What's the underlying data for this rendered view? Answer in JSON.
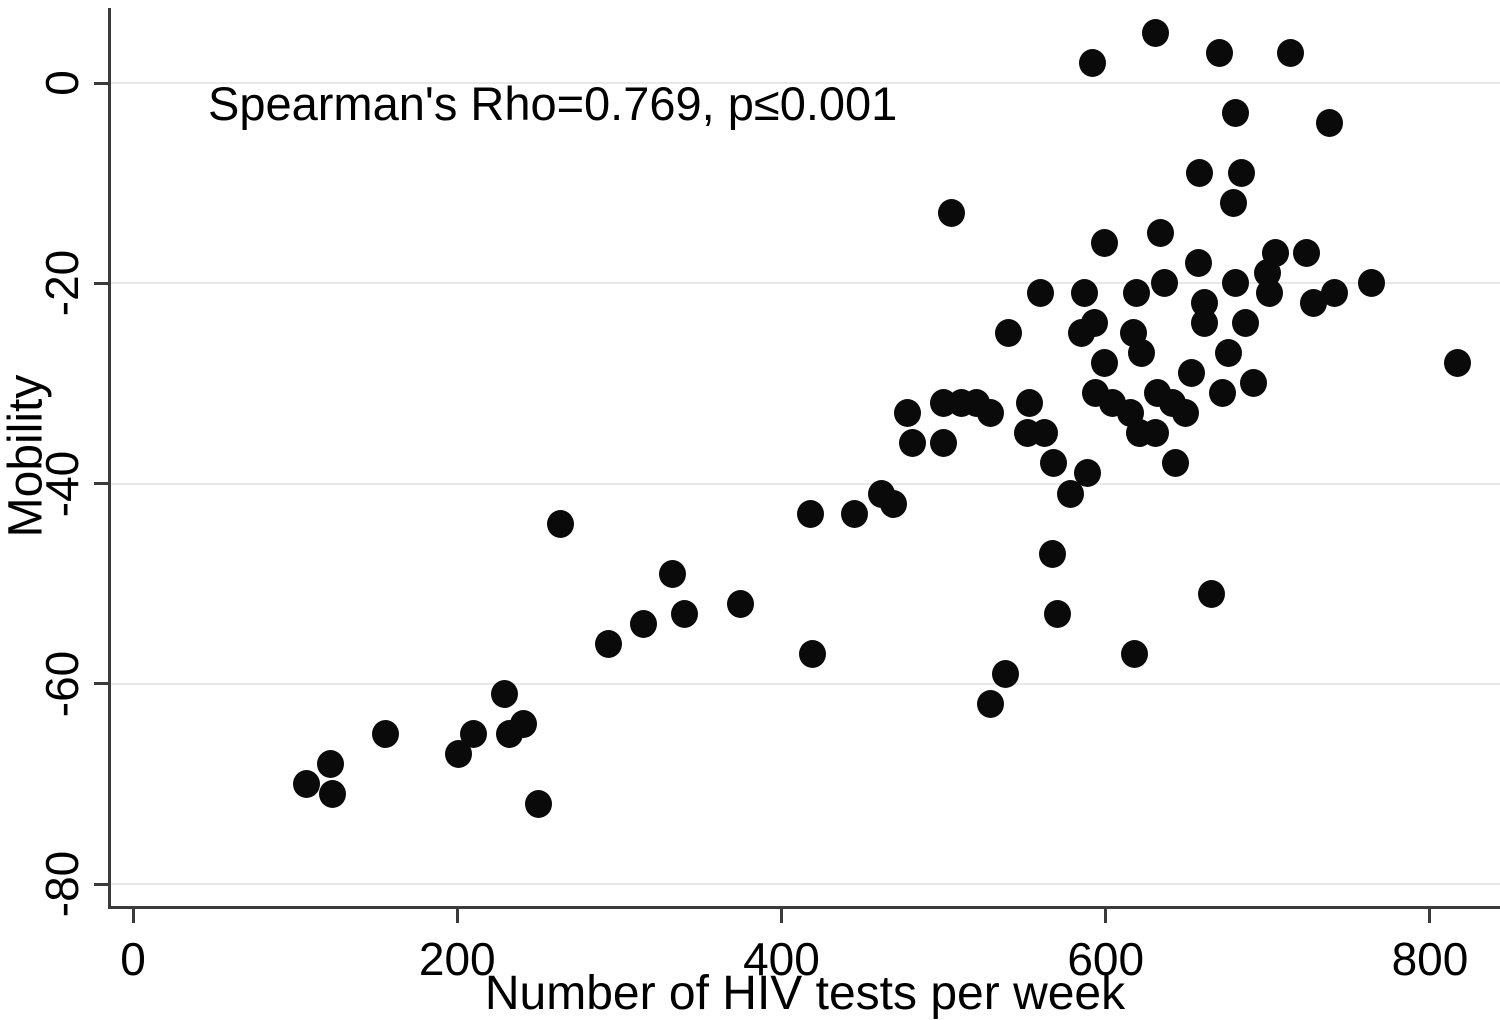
{
  "figure": {
    "annotation": "Spearman's Rho=0.769, p≤0.001",
    "x_axis_title": "Number of HIV tests per week",
    "y_axis_title": "Mobility",
    "colors": {
      "marker": "#0a0a0a",
      "axis": "#3a3a3a",
      "grid": "#e8e8e8",
      "background": "#ffffff",
      "text": "#000000"
    }
  },
  "chart_data": {
    "type": "scatter",
    "title": "",
    "xlabel": "Number of HIV tests per week",
    "ylabel": "Mobility",
    "annotation": "Spearman's Rho=0.769, p≤0.001",
    "x_ticks": [
      0,
      200,
      400,
      600,
      800
    ],
    "y_ticks": [
      0,
      -20,
      -40,
      -60,
      -80
    ],
    "xlim": [
      0,
      845
    ],
    "ylim": [
      -82,
      7.5
    ],
    "grid": "horizontal-only",
    "legend_position": "none",
    "points": [
      [
        107,
        -70
      ],
      [
        122,
        -68
      ],
      [
        123,
        -71
      ],
      [
        156,
        -65
      ],
      [
        201,
        -67
      ],
      [
        210,
        -65
      ],
      [
        229,
        -61
      ],
      [
        232,
        -65
      ],
      [
        241,
        -64
      ],
      [
        250,
        -72
      ],
      [
        264,
        -44
      ],
      [
        293,
        -56
      ],
      [
        315,
        -54
      ],
      [
        333,
        -49
      ],
      [
        340,
        -53
      ],
      [
        375,
        -52
      ],
      [
        418,
        -43
      ],
      [
        419,
        -57
      ],
      [
        445,
        -43
      ],
      [
        462,
        -41
      ],
      [
        469,
        -42
      ],
      [
        478,
        -33
      ],
      [
        481,
        -36
      ],
      [
        500,
        -32
      ],
      [
        500,
        -36
      ],
      [
        505,
        -13
      ],
      [
        511,
        -32
      ],
      [
        520,
        -32
      ],
      [
        529,
        -33
      ],
      [
        529,
        -62
      ],
      [
        538,
        -59
      ],
      [
        540,
        -25
      ],
      [
        552,
        -35
      ],
      [
        553,
        -32
      ],
      [
        560,
        -21
      ],
      [
        562,
        -35
      ],
      [
        567,
        -47
      ],
      [
        568,
        -38
      ],
      [
        570,
        -53
      ],
      [
        578,
        -41
      ],
      [
        585,
        -25
      ],
      [
        587,
        -21
      ],
      [
        589,
        -39
      ],
      [
        592,
        2
      ],
      [
        593,
        -24
      ],
      [
        594,
        -31
      ],
      [
        599,
        -16
      ],
      [
        599,
        -28
      ],
      [
        604,
        -32
      ],
      [
        615,
        -33
      ],
      [
        617,
        -25
      ],
      [
        618,
        -57
      ],
      [
        619,
        -21
      ],
      [
        621,
        -35
      ],
      [
        622,
        -27
      ],
      [
        631,
        5
      ],
      [
        631,
        -35
      ],
      [
        632,
        -31
      ],
      [
        634,
        -15
      ],
      [
        636,
        -20
      ],
      [
        641,
        -32
      ],
      [
        643,
        -38
      ],
      [
        649,
        -33
      ],
      [
        653,
        -29
      ],
      [
        657,
        -18
      ],
      [
        658,
        -9
      ],
      [
        661,
        -22
      ],
      [
        661,
        -24
      ],
      [
        665,
        -51
      ],
      [
        670,
        3
      ],
      [
        672,
        -31
      ],
      [
        676,
        -27
      ],
      [
        679,
        -12
      ],
      [
        680,
        -3
      ],
      [
        680,
        -20
      ],
      [
        684,
        -9
      ],
      [
        686,
        -24
      ],
      [
        691,
        -30
      ],
      [
        700,
        -19
      ],
      [
        701,
        -21
      ],
      [
        705,
        -17
      ],
      [
        714,
        3
      ],
      [
        724,
        -17
      ],
      [
        728,
        -22
      ],
      [
        738,
        -4
      ],
      [
        741,
        -21
      ],
      [
        764,
        -20
      ],
      [
        817,
        -28
      ]
    ]
  }
}
